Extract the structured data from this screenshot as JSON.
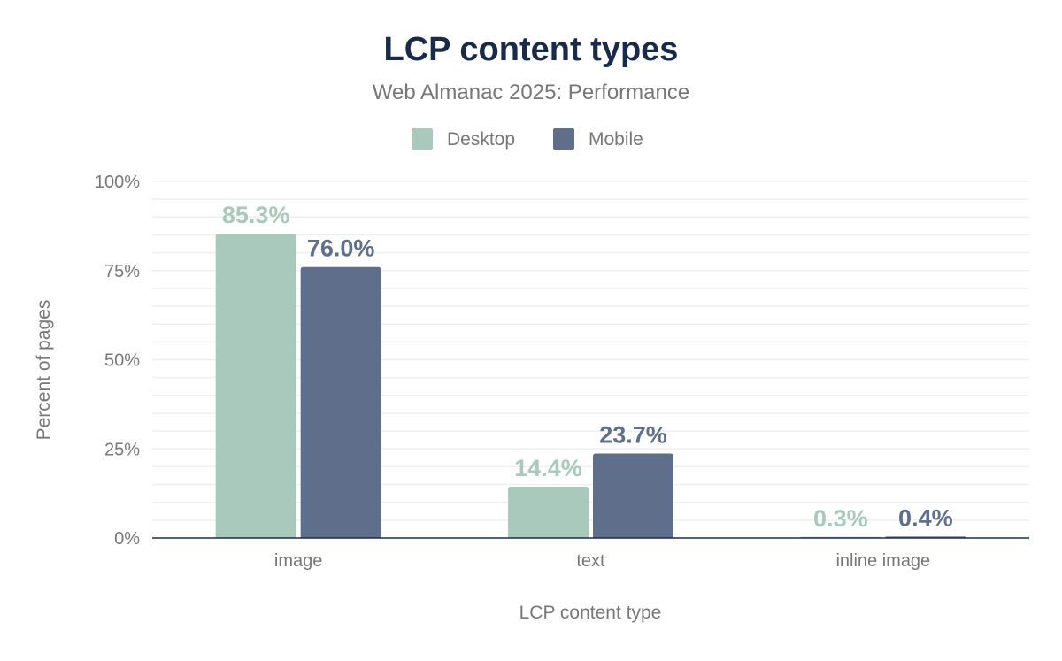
{
  "chart_data": {
    "type": "bar",
    "title": "LCP content types",
    "subtitle": "Web Almanac 2025: Performance",
    "xlabel": "LCP content type",
    "ylabel": "Percent of pages",
    "categories": [
      "image",
      "text",
      "inline image"
    ],
    "series": [
      {
        "name": "Desktop",
        "color": "#a8c9bb",
        "values": [
          85.3,
          14.4,
          0.3
        ],
        "labels": [
          "85.3%",
          "14.4%",
          "0.3%"
        ]
      },
      {
        "name": "Mobile",
        "color": "#5f6e8a",
        "values": [
          76.0,
          23.7,
          0.4
        ],
        "labels": [
          "76.0%",
          "23.7%",
          "0.4%"
        ]
      }
    ],
    "ylim": [
      0,
      100
    ],
    "yticks": [
      0,
      25,
      50,
      75,
      100
    ],
    "ytick_labels": [
      "0%",
      "25%",
      "50%",
      "75%",
      "100%"
    ],
    "grid": true,
    "legend_position": "top",
    "colors": {
      "title": "#1a2b49",
      "text": "#777777",
      "axis": "#1a2b49",
      "grid": "#eeeeee"
    }
  }
}
